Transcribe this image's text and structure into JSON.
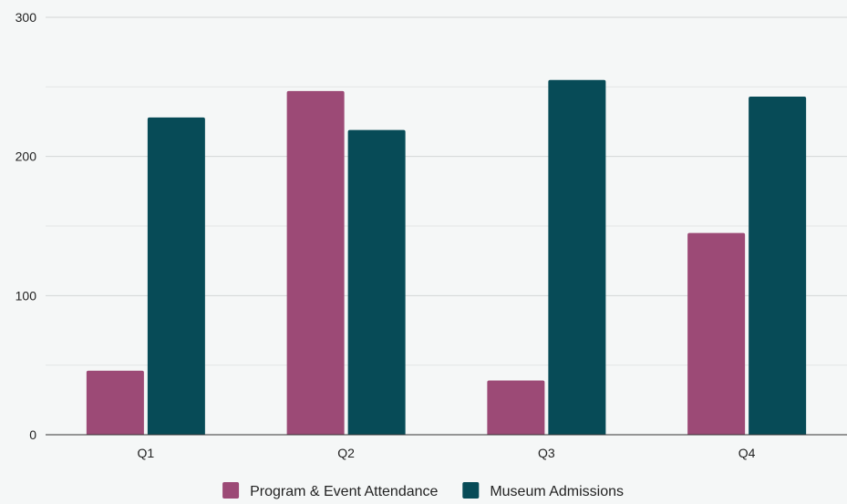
{
  "chart_data": {
    "type": "bar",
    "title": "",
    "xlabel": "",
    "ylabel": "",
    "categories": [
      "Q1",
      "Q2",
      "Q3",
      "Q4"
    ],
    "series": [
      {
        "name": "Program & Event Attendance",
        "color": "#9c4a76",
        "values": [
          46,
          247,
          39,
          145
        ]
      },
      {
        "name": "Museum Admissions",
        "color": "#074b57",
        "values": [
          228,
          219,
          255,
          243
        ]
      }
    ],
    "ylim": [
      0,
      300
    ],
    "yticks": [
      0,
      100,
      200,
      300
    ],
    "minor_gridlines": true,
    "grid": true,
    "legend_position": "bottom"
  }
}
